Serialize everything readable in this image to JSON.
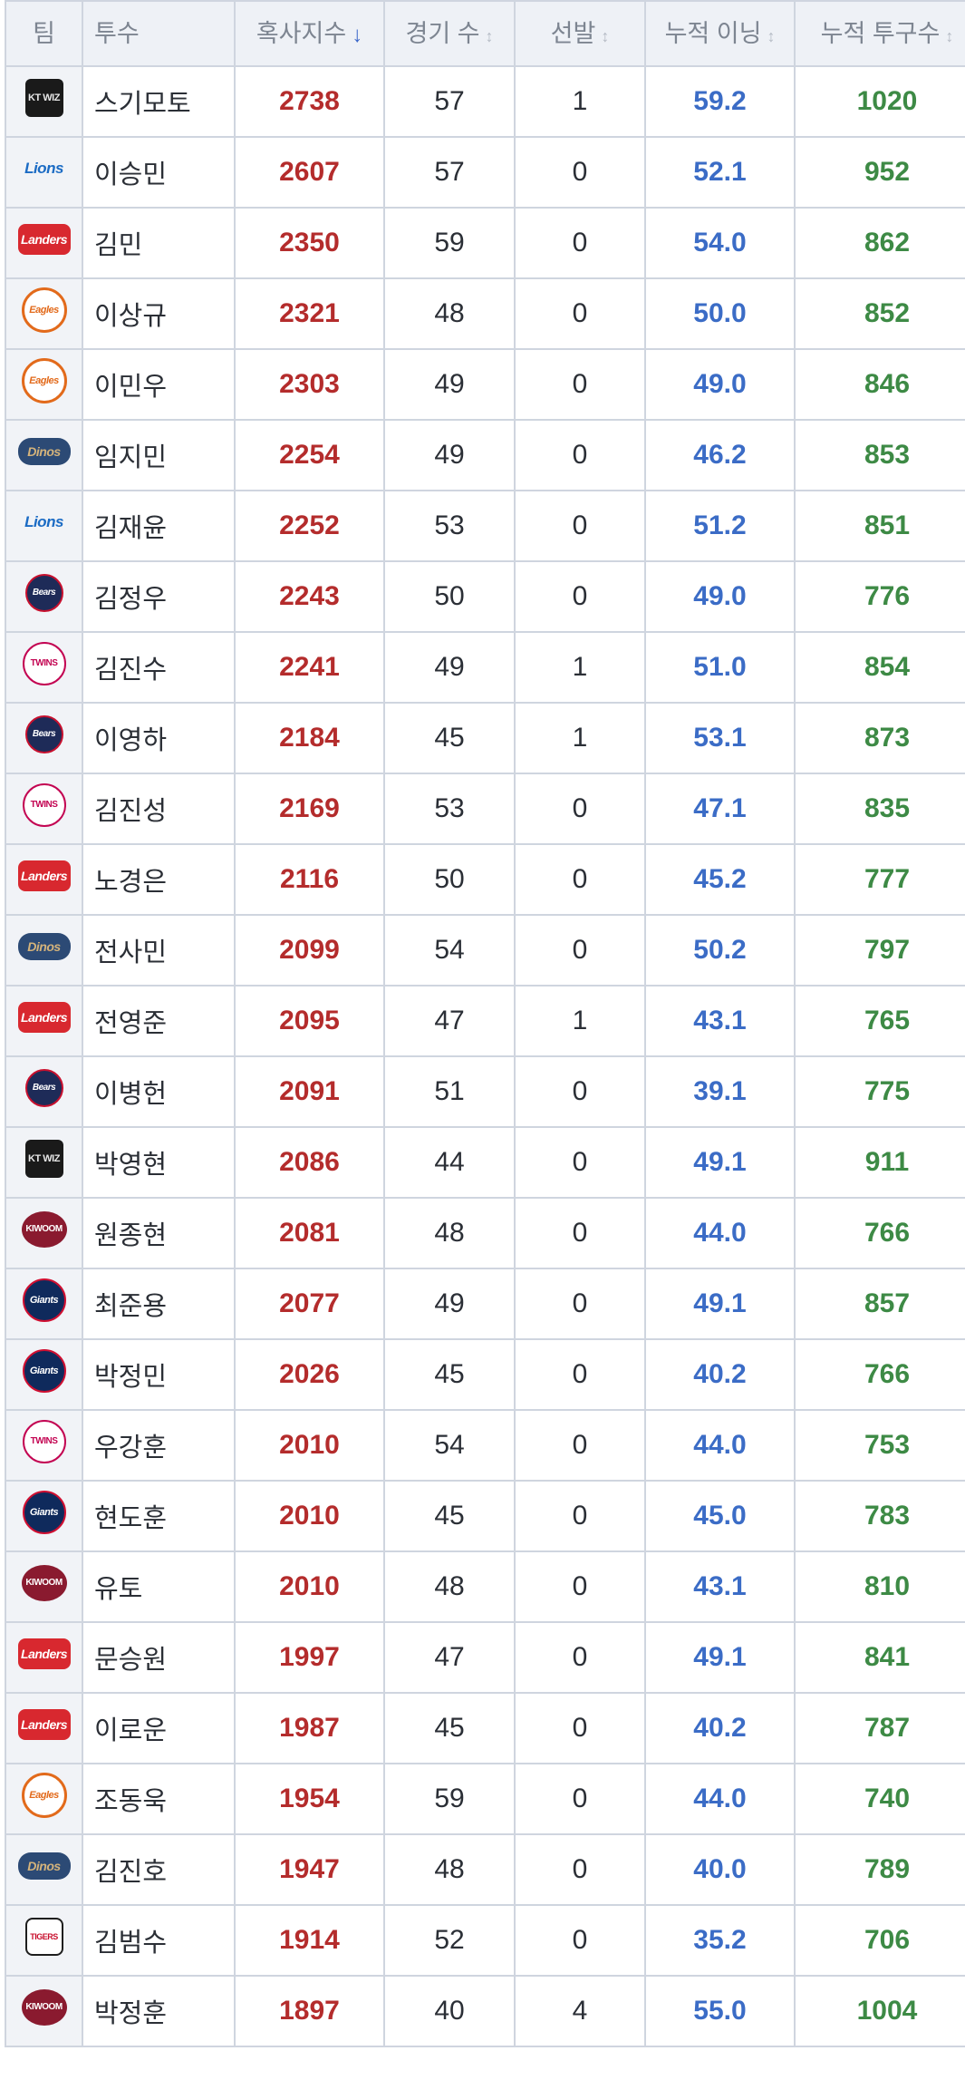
{
  "header": {
    "team": "팀",
    "pitcher": "투수",
    "index": "혹사지수",
    "games": "경기 수",
    "starts": "선발",
    "innings": "누적 이닝",
    "pitches": "누적 투구수",
    "sort_active_glyph": "↓",
    "sort_glyph": "↕"
  },
  "teams": {
    "kt": "KT WIZ",
    "lions": "Lions",
    "landers": "Landers",
    "eagles": "Eagles",
    "dinos": "Dinos",
    "bears": "Bears",
    "twins": "TWINS",
    "kiwoom": "KIWOOM",
    "giants": "Giants",
    "tigers": "TIGERS"
  },
  "rows": [
    {
      "team": "kt",
      "name": "스기모토",
      "index": "2738",
      "games": "57",
      "starts": "1",
      "innings": "59.2",
      "pitches": "1020"
    },
    {
      "team": "lions",
      "name": "이승민",
      "index": "2607",
      "games": "57",
      "starts": "0",
      "innings": "52.1",
      "pitches": "952"
    },
    {
      "team": "landers",
      "name": "김민",
      "index": "2350",
      "games": "59",
      "starts": "0",
      "innings": "54.0",
      "pitches": "862"
    },
    {
      "team": "eagles",
      "name": "이상규",
      "index": "2321",
      "games": "48",
      "starts": "0",
      "innings": "50.0",
      "pitches": "852"
    },
    {
      "team": "eagles",
      "name": "이민우",
      "index": "2303",
      "games": "49",
      "starts": "0",
      "innings": "49.0",
      "pitches": "846"
    },
    {
      "team": "dinos",
      "name": "임지민",
      "index": "2254",
      "games": "49",
      "starts": "0",
      "innings": "46.2",
      "pitches": "853"
    },
    {
      "team": "lions",
      "name": "김재윤",
      "index": "2252",
      "games": "53",
      "starts": "0",
      "innings": "51.2",
      "pitches": "851"
    },
    {
      "team": "bears",
      "name": "김정우",
      "index": "2243",
      "games": "50",
      "starts": "0",
      "innings": "49.0",
      "pitches": "776"
    },
    {
      "team": "twins",
      "name": "김진수",
      "index": "2241",
      "games": "49",
      "starts": "1",
      "innings": "51.0",
      "pitches": "854"
    },
    {
      "team": "bears",
      "name": "이영하",
      "index": "2184",
      "games": "45",
      "starts": "1",
      "innings": "53.1",
      "pitches": "873"
    },
    {
      "team": "twins",
      "name": "김진성",
      "index": "2169",
      "games": "53",
      "starts": "0",
      "innings": "47.1",
      "pitches": "835"
    },
    {
      "team": "landers",
      "name": "노경은",
      "index": "2116",
      "games": "50",
      "starts": "0",
      "innings": "45.2",
      "pitches": "777"
    },
    {
      "team": "dinos",
      "name": "전사민",
      "index": "2099",
      "games": "54",
      "starts": "0",
      "innings": "50.2",
      "pitches": "797"
    },
    {
      "team": "landers",
      "name": "전영준",
      "index": "2095",
      "games": "47",
      "starts": "1",
      "innings": "43.1",
      "pitches": "765"
    },
    {
      "team": "bears",
      "name": "이병헌",
      "index": "2091",
      "games": "51",
      "starts": "0",
      "innings": "39.1",
      "pitches": "775"
    },
    {
      "team": "kt",
      "name": "박영현",
      "index": "2086",
      "games": "44",
      "starts": "0",
      "innings": "49.1",
      "pitches": "911"
    },
    {
      "team": "kiwoom",
      "name": "원종현",
      "index": "2081",
      "games": "48",
      "starts": "0",
      "innings": "44.0",
      "pitches": "766"
    },
    {
      "team": "giants",
      "name": "최준용",
      "index": "2077",
      "games": "49",
      "starts": "0",
      "innings": "49.1",
      "pitches": "857"
    },
    {
      "team": "giants",
      "name": "박정민",
      "index": "2026",
      "games": "45",
      "starts": "0",
      "innings": "40.2",
      "pitches": "766"
    },
    {
      "team": "twins",
      "name": "우강훈",
      "index": "2010",
      "games": "54",
      "starts": "0",
      "innings": "44.0",
      "pitches": "753"
    },
    {
      "team": "giants",
      "name": "현도훈",
      "index": "2010",
      "games": "45",
      "starts": "0",
      "innings": "45.0",
      "pitches": "783"
    },
    {
      "team": "kiwoom",
      "name": "유토",
      "index": "2010",
      "games": "48",
      "starts": "0",
      "innings": "43.1",
      "pitches": "810"
    },
    {
      "team": "landers",
      "name": "문승원",
      "index": "1997",
      "games": "47",
      "starts": "0",
      "innings": "49.1",
      "pitches": "841"
    },
    {
      "team": "landers",
      "name": "이로운",
      "index": "1987",
      "games": "45",
      "starts": "0",
      "innings": "40.2",
      "pitches": "787"
    },
    {
      "team": "eagles",
      "name": "조동욱",
      "index": "1954",
      "games": "59",
      "starts": "0",
      "innings": "44.0",
      "pitches": "740"
    },
    {
      "team": "dinos",
      "name": "김진호",
      "index": "1947",
      "games": "48",
      "starts": "0",
      "innings": "40.0",
      "pitches": "789"
    },
    {
      "team": "tigers",
      "name": "김범수",
      "index": "1914",
      "games": "52",
      "starts": "0",
      "innings": "35.2",
      "pitches": "706"
    },
    {
      "team": "kiwoom",
      "name": "박정훈",
      "index": "1897",
      "games": "40",
      "starts": "4",
      "innings": "55.0",
      "pitches": "1004"
    }
  ]
}
